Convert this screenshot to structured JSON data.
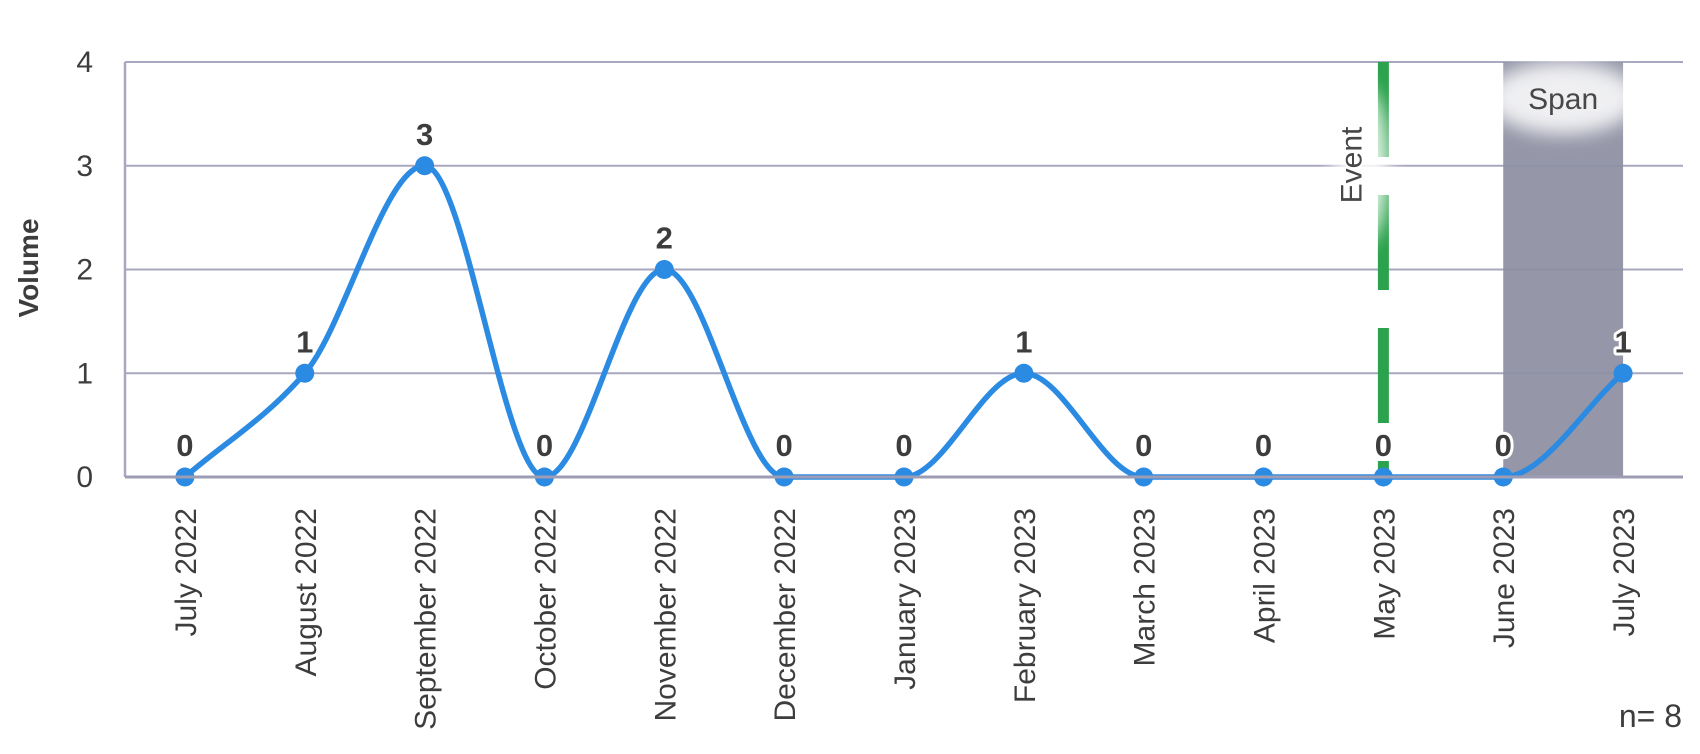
{
  "chart_data": {
    "type": "line",
    "title": "",
    "ylabel": "Volume",
    "xlabel": "",
    "categories": [
      "July 2022",
      "August 2022",
      "September 2022",
      "October 2022",
      "November 2022",
      "December 2022",
      "January 2023",
      "February 2023",
      "March 2023",
      "April 2023",
      "May 2023",
      "June 2023",
      "July 2023"
    ],
    "series": [
      {
        "name": "Volume",
        "values": [
          0,
          1,
          3,
          0,
          2,
          0,
          0,
          1,
          0,
          0,
          0,
          0,
          1
        ]
      }
    ],
    "point_labels": [
      "0",
      "1",
      "3",
      "0",
      "2",
      "0",
      "0",
      "1",
      "0",
      "0",
      "0",
      "0",
      "1"
    ],
    "ylim": [
      0,
      4
    ],
    "yticks": [
      0,
      1,
      2,
      3,
      4
    ],
    "grid": "horizontal-on",
    "legend": "none",
    "smooth": true,
    "colors": {
      "line": "#2B8AE2",
      "marker": "#2B8AE2",
      "gridline": "#A7A7C0",
      "axis": "#9C9DB4",
      "text": "#3D3D3D",
      "event_line": "#2BA24C",
      "span_fill": "#8D8FA1",
      "background": "#FFFFFF"
    },
    "annotations": {
      "event_line": {
        "label": "Event",
        "category": "May 2023",
        "style": "dashed-vertical",
        "color": "#2BA24C"
      },
      "span_region": {
        "label": "Span",
        "from_category": "June 2023",
        "to_category": "July 2023",
        "color": "#8D8FA1",
        "opacity": 0.93
      },
      "sample_size": "n= 8"
    }
  }
}
